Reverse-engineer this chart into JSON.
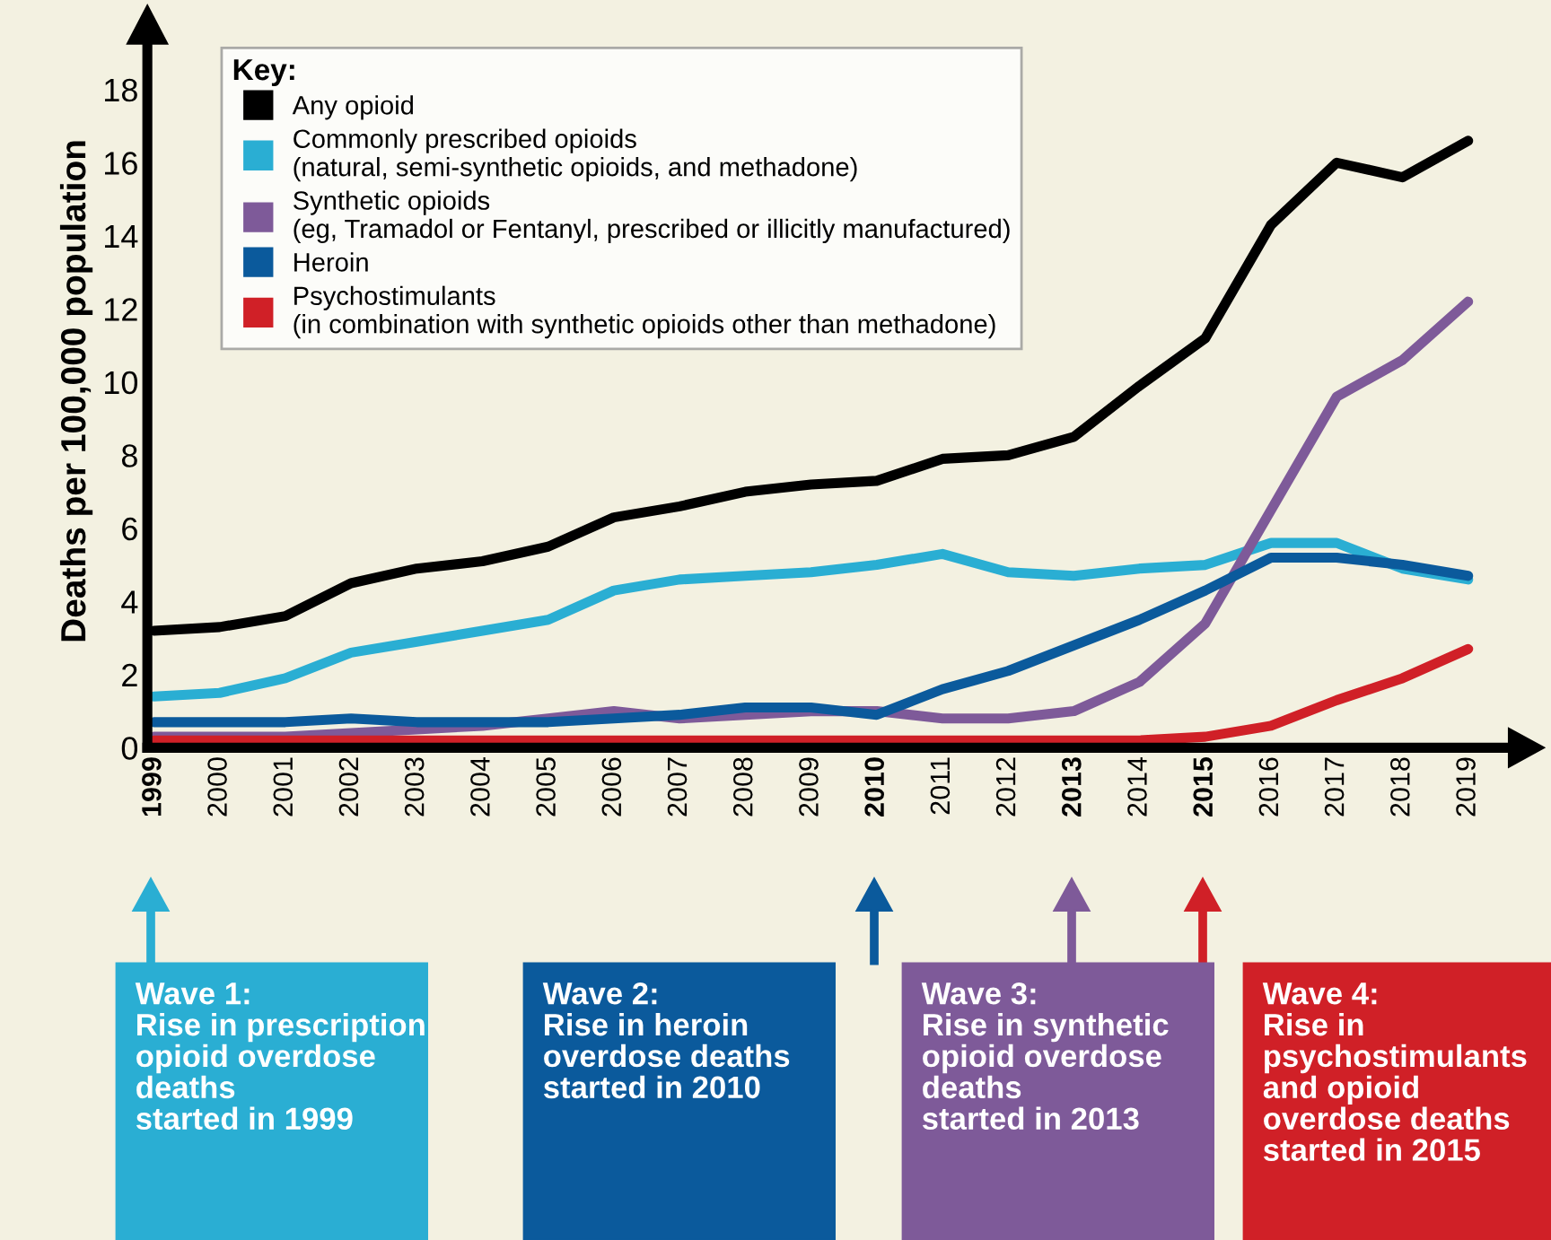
{
  "chart_data": {
    "type": "line",
    "ylabel": "Deaths per 100,000 population",
    "legend_title": "Key:",
    "categories": [
      "1999",
      "2000",
      "2001",
      "2002",
      "2003",
      "2004",
      "2005",
      "2006",
      "2007",
      "2008",
      "2009",
      "2010",
      "2011",
      "2012",
      "2013",
      "2014",
      "2015",
      "2016",
      "2017",
      "2018",
      "2019"
    ],
    "series": [
      {
        "name": "Any opioid",
        "color": "#000000",
        "values": [
          3.2,
          3.3,
          3.6,
          4.5,
          4.9,
          5.1,
          5.5,
          6.3,
          6.6,
          7.0,
          7.2,
          7.3,
          7.9,
          8.0,
          8.5,
          9.9,
          11.2,
          14.3,
          16.0,
          15.6,
          16.6
        ]
      },
      {
        "name": "Commonly prescribed opioids\n(natural, semi-synthetic opioids, and methadone)",
        "color": "#2aaed3",
        "values": [
          1.4,
          1.5,
          1.9,
          2.6,
          2.9,
          3.2,
          3.5,
          4.3,
          4.6,
          4.7,
          4.8,
          5.0,
          5.3,
          4.8,
          4.7,
          4.9,
          5.0,
          5.6,
          5.6,
          4.9,
          4.6
        ]
      },
      {
        "name": "Synthetic opioids\n(eg, Tramadol or Fentanyl, prescribed or illicitly manufactured)",
        "color": "#7e5a99",
        "values": [
          0.3,
          0.3,
          0.3,
          0.4,
          0.5,
          0.6,
          0.8,
          1.0,
          0.8,
          0.9,
          1.0,
          1.0,
          0.8,
          0.8,
          1.0,
          1.8,
          3.4,
          6.5,
          9.6,
          10.6,
          12.2
        ]
      },
      {
        "name": "Heroin",
        "color": "#0b5a9c",
        "values": [
          0.7,
          0.7,
          0.7,
          0.8,
          0.7,
          0.7,
          0.7,
          0.8,
          0.9,
          1.1,
          1.1,
          0.9,
          1.6,
          2.1,
          2.8,
          3.5,
          4.3,
          5.2,
          5.2,
          5.0,
          4.7
        ]
      },
      {
        "name": "Psychostimulants\n(in combination with synthetic opioids other than methadone)",
        "color": "#d02027",
        "values": [
          0.2,
          0.2,
          0.2,
          0.2,
          0.2,
          0.2,
          0.2,
          0.2,
          0.2,
          0.2,
          0.2,
          0.2,
          0.2,
          0.2,
          0.2,
          0.2,
          0.3,
          0.6,
          1.3,
          1.9,
          2.7
        ]
      }
    ],
    "ylim": [
      0,
      19.5
    ],
    "yticks": [
      0,
      2,
      4,
      6,
      8,
      10,
      12,
      14,
      16,
      18
    ],
    "grid": false,
    "legend": "top left",
    "annotations": [
      "Wave 1:\nRise in prescription\nopioid overdose\ndeaths\nstarted in 1999",
      "Wave 2:\nRise in heroin\noverdose deaths\nstarted in 2010",
      "Wave 3:\nRise in synthetic\nopioid overdose\ndeaths\nstarted in 2013",
      "Wave 4:\nRise in\npsychostimulants\nand opioid\noverdose deaths\nstarted in 2015"
    ]
  }
}
